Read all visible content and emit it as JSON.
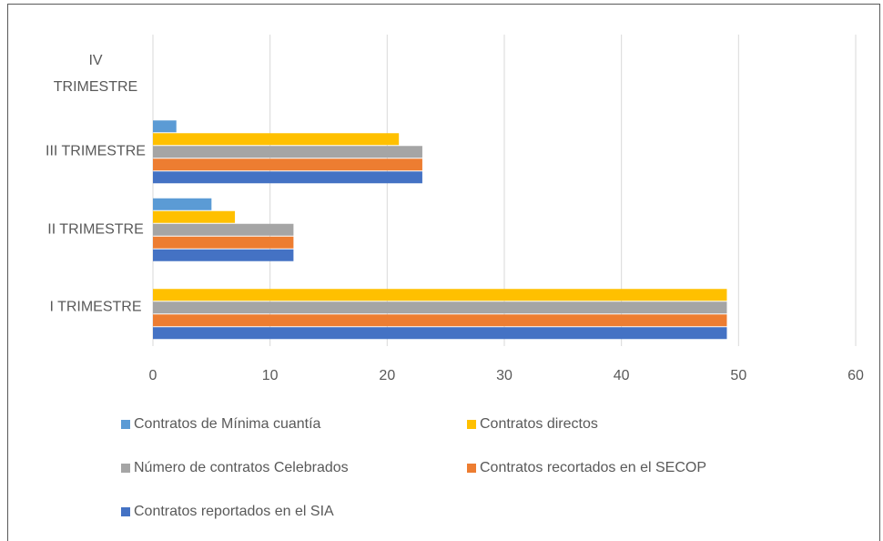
{
  "chart_data": {
    "type": "bar",
    "orientation": "horizontal",
    "categories": [
      "I TRIMESTRE",
      "II TRIMESTRE",
      "III TRIMESTRE",
      "IV TRIMESTRE"
    ],
    "series": [
      {
        "name": "Contratos reportados en el SIA",
        "color": "#4472c4",
        "values": [
          49,
          12,
          23,
          0
        ]
      },
      {
        "name": "Contratos recortados en el SECOP",
        "color": "#ed7d31",
        "values": [
          49,
          12,
          23,
          0
        ]
      },
      {
        "name": "Número de contratos Celebrados",
        "color": "#a5a5a5",
        "values": [
          49,
          12,
          23,
          0
        ]
      },
      {
        "name": "Contratos directos",
        "color": "#ffc000",
        "values": [
          49,
          7,
          21,
          0
        ]
      },
      {
        "name": "Contratos de Mínima cuantía",
        "color": "#5b9bd5",
        "values": [
          0,
          5,
          2,
          0
        ]
      }
    ],
    "xlim": [
      0,
      60
    ],
    "xticks": [
      0,
      10,
      20,
      30,
      40,
      50,
      60
    ],
    "grid": true,
    "legend": "bottom"
  }
}
